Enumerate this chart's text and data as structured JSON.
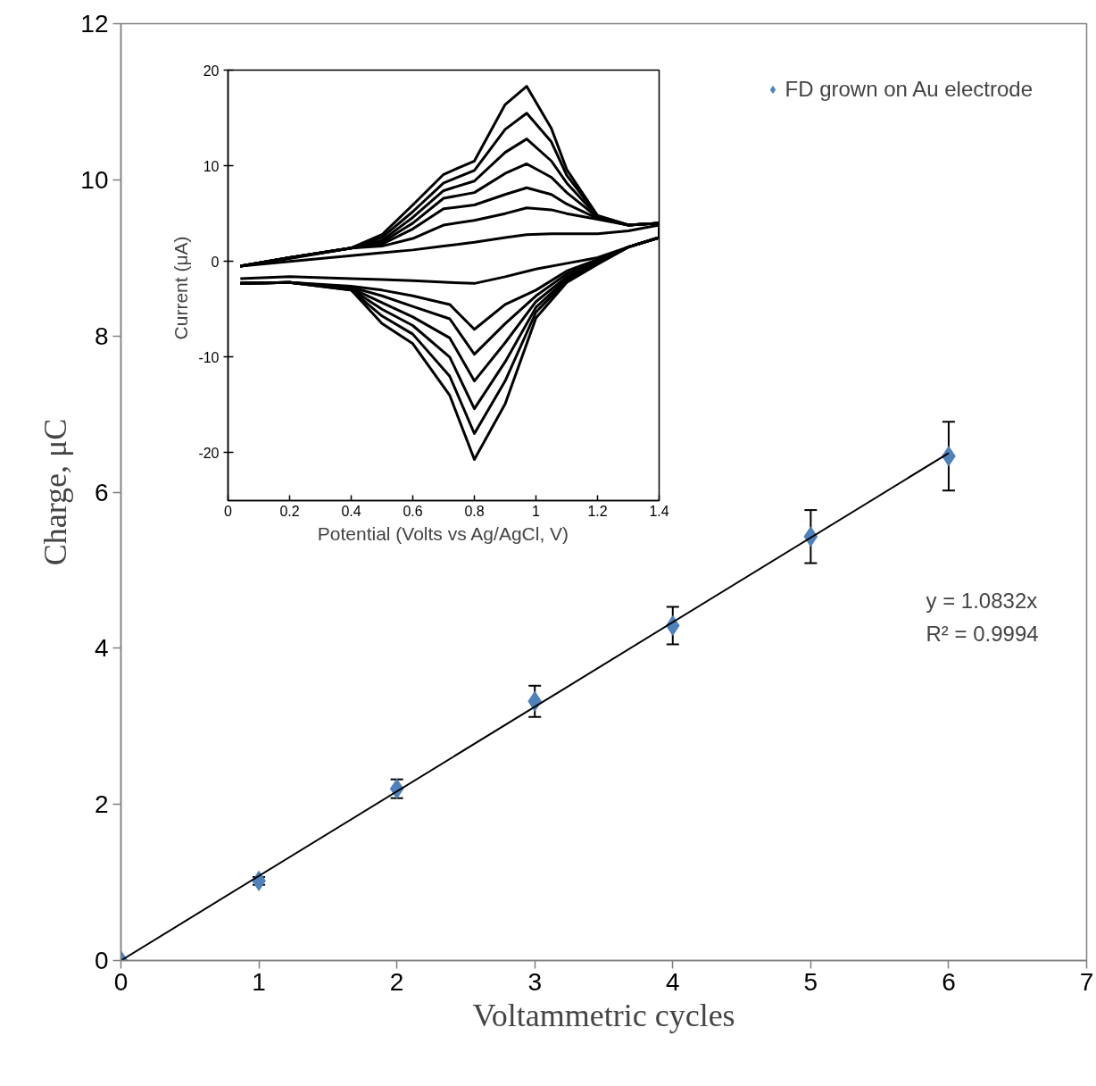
{
  "chart_data": [
    {
      "type": "scatter",
      "xlabel": "Voltammetric cycles",
      "ylabel": "Charge, μC",
      "xlim": [
        0,
        7
      ],
      "ylim": [
        0,
        12
      ],
      "xticks": [
        0,
        1,
        2,
        3,
        4,
        5,
        6,
        7
      ],
      "yticks": [
        0,
        2,
        4,
        6,
        8,
        10,
        12
      ],
      "grid": false,
      "legend": "top right",
      "marker": "diamond",
      "annotations": [
        "y = 1.0832x",
        "R² = 0.9994"
      ],
      "series": [
        {
          "name": "FD grown on Au electrode",
          "color": "#4f81bd",
          "x": [
            0,
            1,
            2,
            3,
            4,
            5,
            6
          ],
          "values": [
            0,
            1.02,
            2.2,
            3.32,
            4.29,
            5.43,
            6.46
          ],
          "errors": [
            null,
            0.05,
            0.12,
            0.2,
            0.24,
            0.34,
            0.44
          ]
        },
        {
          "type": "line",
          "marker": "none",
          "color": "#000000",
          "x": [
            0,
            6
          ],
          "values": [
            0,
            6.5
          ]
        }
      ]
    },
    {
      "type": "line",
      "xlabel": "Potential (Volts vs Ag/AgCl, V)",
      "ylabel": "Current  (μA)",
      "xlim": [
        0,
        1.4
      ],
      "ylim": [
        -25,
        20
      ],
      "xticks": [
        0,
        0.2,
        0.4,
        0.6,
        0.8,
        1,
        1.2,
        1.4
      ],
      "yticks": [
        -20,
        -10,
        0,
        10,
        20
      ],
      "grid": false,
      "line_style": "solid",
      "x": [
        0.04,
        0.2,
        0.4,
        0.5,
        0.6,
        0.7,
        0.8,
        0.9,
        0.97,
        1.05,
        1.1,
        1.2,
        1.3,
        1.4,
        1.4,
        1.3,
        1.2,
        1.1,
        1.0,
        0.9,
        0.8,
        0.72,
        0.6,
        0.5,
        0.4,
        0.2,
        0.04
      ],
      "series": [
        {
          "color": "#000000",
          "values": [
            -0.5,
            0.0,
            0.6,
            0.9,
            1.2,
            1.6,
            2.0,
            2.5,
            2.8,
            2.9,
            2.9,
            2.9,
            3.2,
            3.8,
            2.5,
            1.5,
            0.4,
            -0.2,
            -0.8,
            -1.6,
            -2.3,
            -2.2,
            -2.0,
            -1.9,
            -1.8,
            -1.6,
            -1.8
          ]
        },
        {
          "color": "#000000",
          "values": [
            -0.5,
            0.4,
            1.4,
            1.6,
            2.4,
            3.8,
            4.3,
            5.0,
            5.6,
            5.4,
            5.0,
            4.4,
            3.8,
            4.0,
            2.5,
            1.5,
            0.2,
            -1.0,
            -3.0,
            -4.5,
            -7.1,
            -4.5,
            -3.6,
            -3.0,
            -2.6,
            -2.2,
            -2.3
          ]
        },
        {
          "color": "#000000",
          "values": [
            -0.5,
            0.4,
            1.4,
            1.8,
            3.4,
            5.5,
            5.9,
            7.0,
            7.7,
            7.0,
            6.0,
            4.5,
            3.8,
            4.0,
            2.5,
            1.5,
            0.1,
            -1.3,
            -3.6,
            -6.5,
            -9.7,
            -6.0,
            -4.7,
            -3.6,
            -2.7,
            -2.2,
            -2.3
          ]
        },
        {
          "color": "#000000",
          "values": [
            -0.5,
            0.4,
            1.4,
            2.0,
            4.0,
            6.6,
            7.2,
            9.2,
            10.2,
            8.8,
            7.2,
            4.6,
            3.8,
            4.0,
            2.5,
            1.5,
            0.0,
            -1.6,
            -4.2,
            -8.5,
            -12.5,
            -8.0,
            -5.8,
            -4.3,
            -2.8,
            -2.2,
            -2.3
          ]
        },
        {
          "color": "#000000",
          "values": [
            -0.5,
            0.4,
            1.4,
            2.2,
            4.6,
            7.4,
            8.4,
            11.4,
            12.8,
            10.5,
            8.2,
            4.7,
            3.8,
            4.0,
            2.5,
            1.5,
            -0.1,
            -1.8,
            -4.8,
            -10.5,
            -15.4,
            -10.0,
            -6.7,
            -5.0,
            -2.9,
            -2.2,
            -2.3
          ]
        },
        {
          "color": "#000000",
          "values": [
            -0.5,
            0.4,
            1.4,
            2.5,
            5.2,
            8.2,
            9.5,
            13.8,
            15.5,
            12.5,
            9.0,
            4.8,
            3.8,
            4.0,
            2.5,
            1.5,
            -0.2,
            -2.0,
            -5.3,
            -12.5,
            -18.0,
            -12.0,
            -7.6,
            -5.7,
            -3.0,
            -2.2,
            -2.3
          ]
        },
        {
          "color": "#000000",
          "values": [
            -0.5,
            0.3,
            1.4,
            2.8,
            5.9,
            9.1,
            10.5,
            16.4,
            18.3,
            13.9,
            9.6,
            4.8,
            3.8,
            4.0,
            2.5,
            1.5,
            -0.3,
            -2.2,
            -5.9,
            -14.9,
            -20.7,
            -14.0,
            -8.6,
            -6.5,
            -3.0,
            -2.2,
            -2.3
          ]
        }
      ]
    }
  ]
}
